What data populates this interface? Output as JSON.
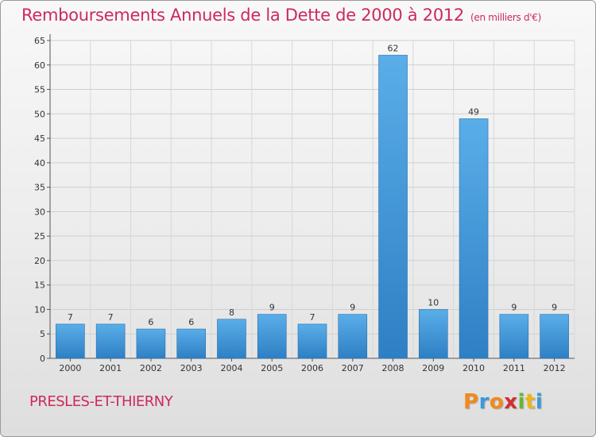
{
  "title": "Remboursements Annuels de la Dette de 2000 à 2012",
  "unit_label": "(en milliers d'€)",
  "commune": "PRESLES-ET-THIERNY",
  "logo": {
    "letters": [
      "P",
      "r",
      "o",
      "x",
      "i",
      "t",
      "i"
    ],
    "colors": [
      "#f08a1c",
      "#3a9ad9",
      "#f08a1c",
      "#d42d2d",
      "#6ab534",
      "#f0b419",
      "#3a9ad9"
    ]
  },
  "colors": {
    "title": "#cc2a5a",
    "bar_top": "#5aaee8",
    "bar_bottom": "#2e7fc4"
  },
  "chart_data": {
    "type": "bar",
    "title": "Remboursements Annuels de la Dette de 2000 à 2012",
    "categories": [
      "2000",
      "2001",
      "2002",
      "2003",
      "2004",
      "2005",
      "2006",
      "2007",
      "2008",
      "2009",
      "2010",
      "2011",
      "2012"
    ],
    "values": [
      7,
      7,
      6,
      6,
      8,
      9,
      7,
      9,
      62,
      10,
      49,
      9,
      9
    ],
    "ylim": [
      0,
      65
    ],
    "yticks": [
      0,
      5,
      10,
      15,
      20,
      25,
      30,
      35,
      40,
      45,
      50,
      55,
      60,
      65
    ],
    "grid": true,
    "legend": "none"
  }
}
